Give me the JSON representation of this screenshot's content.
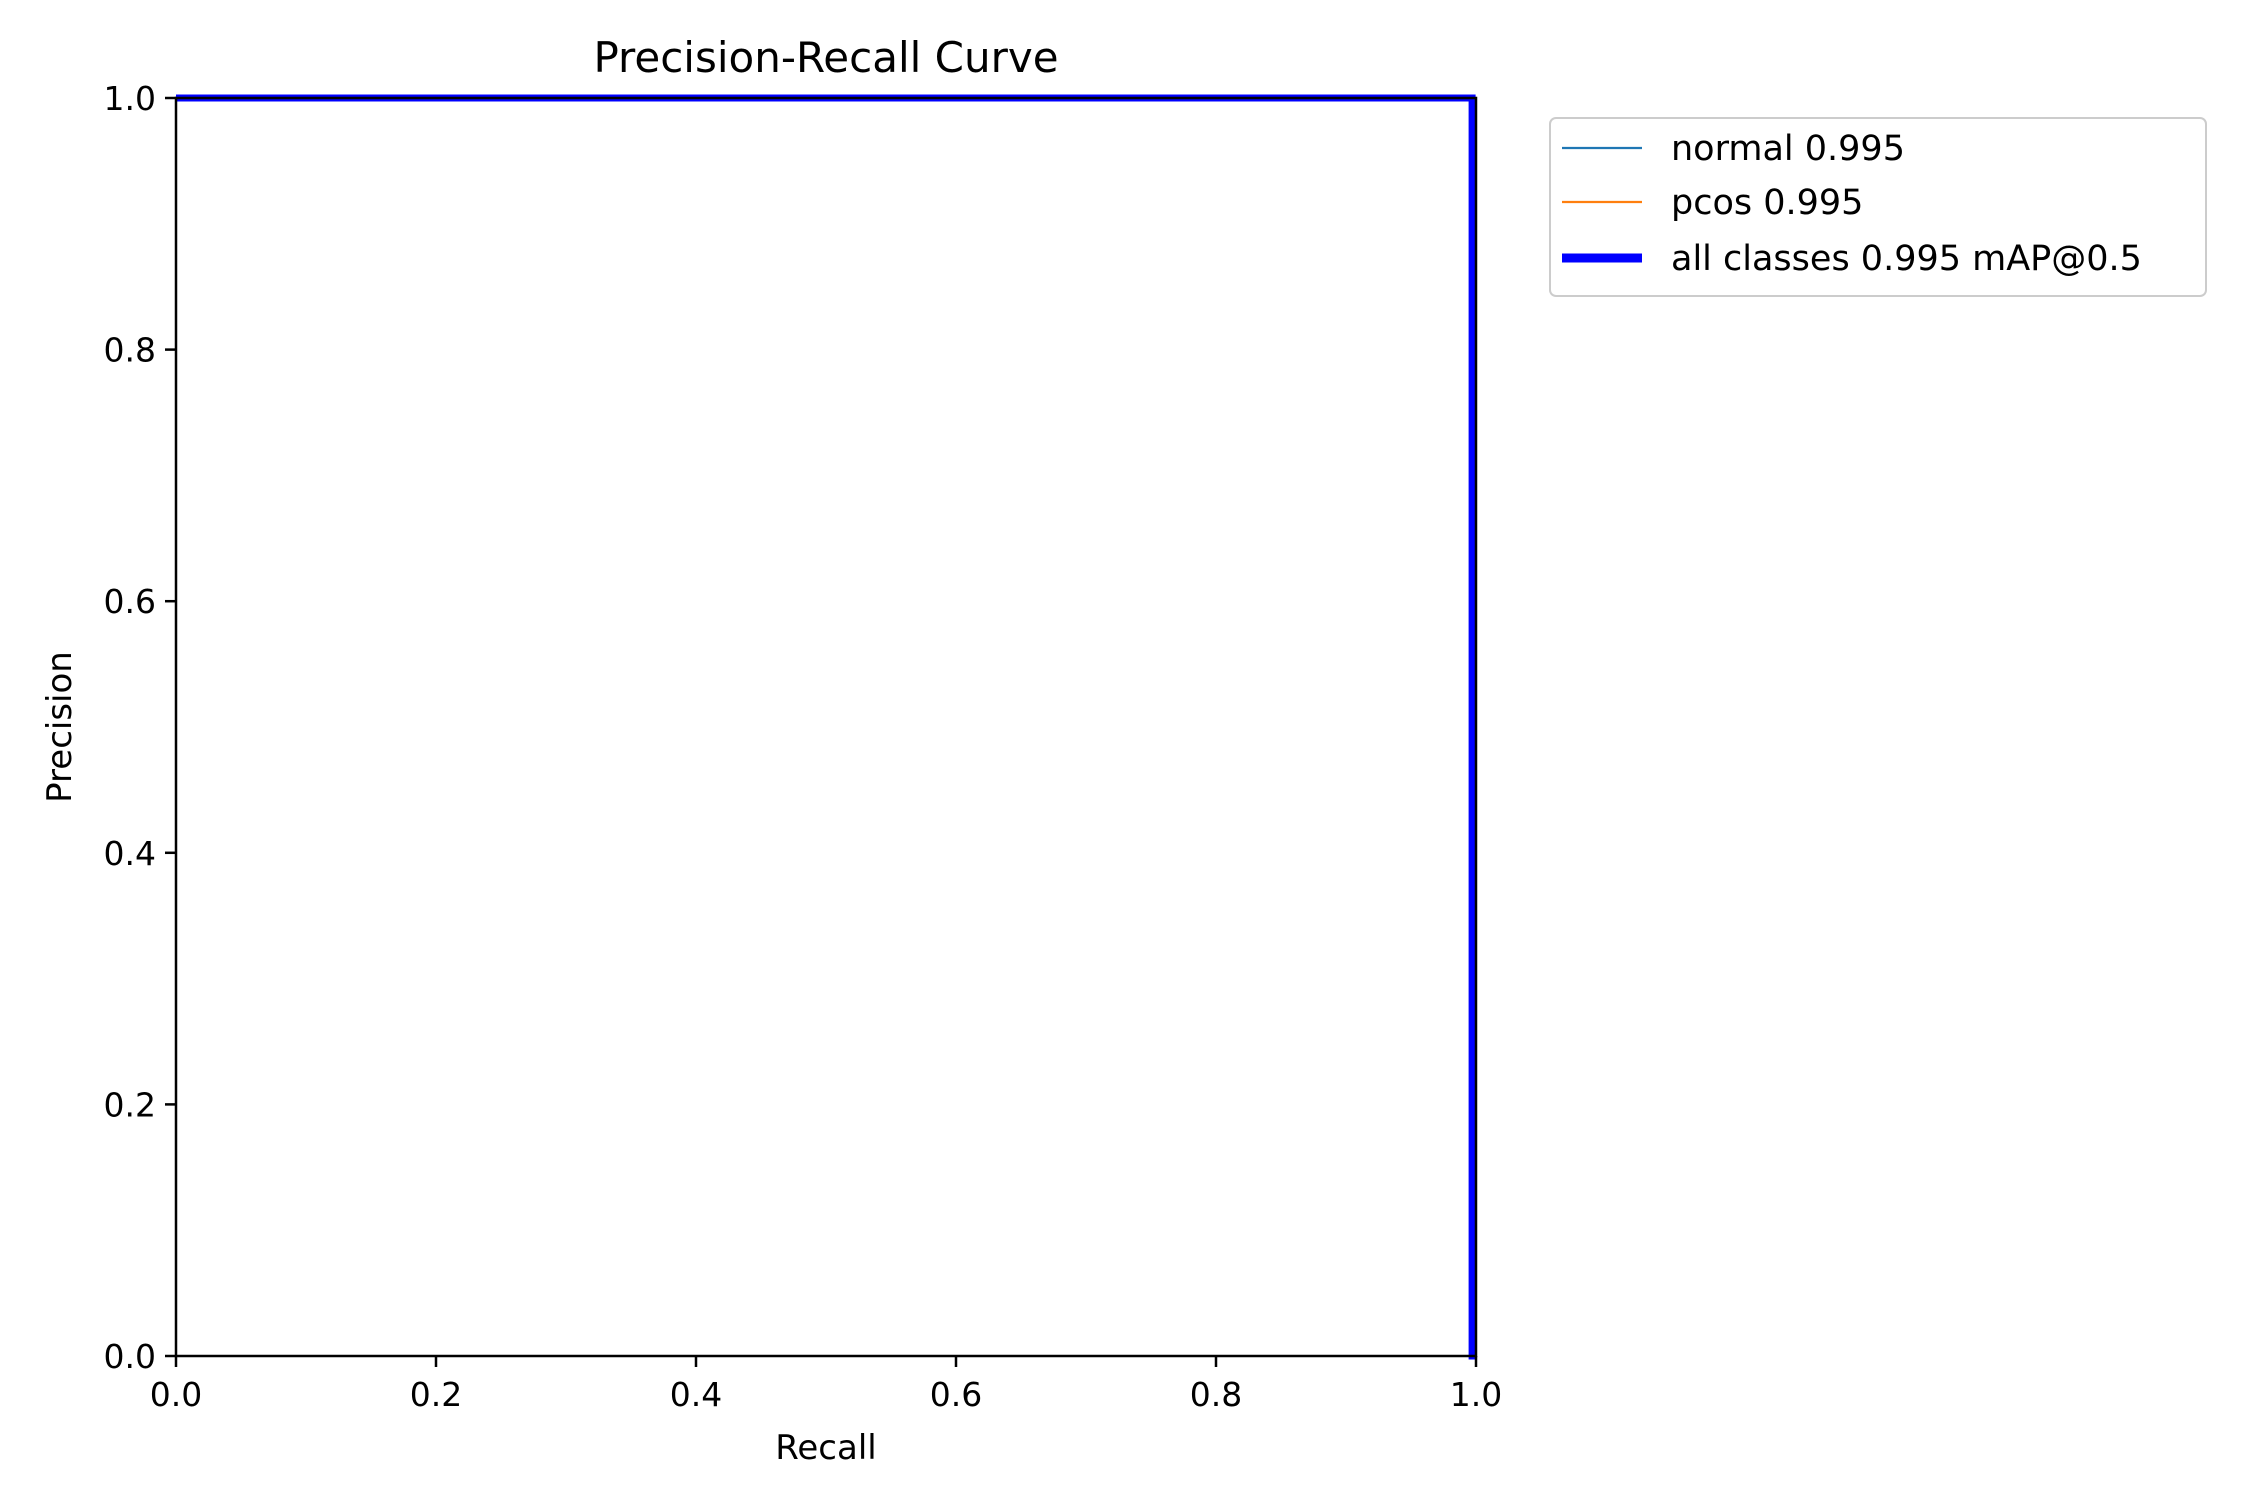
{
  "chart_data": {
    "type": "line",
    "title": "Precision-Recall Curve",
    "xlabel": "Recall",
    "ylabel": "Precision",
    "xlim": [
      0.0,
      1.0
    ],
    "ylim": [
      0.0,
      1.0
    ],
    "xticks": [
      "0.0",
      "0.2",
      "0.4",
      "0.6",
      "0.8",
      "1.0"
    ],
    "yticks": [
      "0.0",
      "0.2",
      "0.4",
      "0.6",
      "0.8",
      "1.0"
    ],
    "grid": false,
    "legend_position": "outside-top-right",
    "series": [
      {
        "name": "normal 0.995",
        "color": "#1f77b4",
        "style": "thin",
        "x": [
          0.0,
          0.997,
          0.997,
          1.0
        ],
        "y": [
          1.0,
          1.0,
          0.0,
          0.0
        ]
      },
      {
        "name": "pcos 0.995",
        "color": "#ff7f0e",
        "style": "thin",
        "x": [
          0.0,
          0.997,
          0.997,
          1.0
        ],
        "y": [
          1.0,
          1.0,
          0.0,
          0.0
        ]
      },
      {
        "name": "all classes 0.995 mAP@0.5",
        "color": "#0000ff",
        "style": "thick",
        "x": [
          0.0,
          0.997,
          0.997,
          1.0
        ],
        "y": [
          1.0,
          1.0,
          0.0,
          0.0
        ]
      }
    ]
  }
}
